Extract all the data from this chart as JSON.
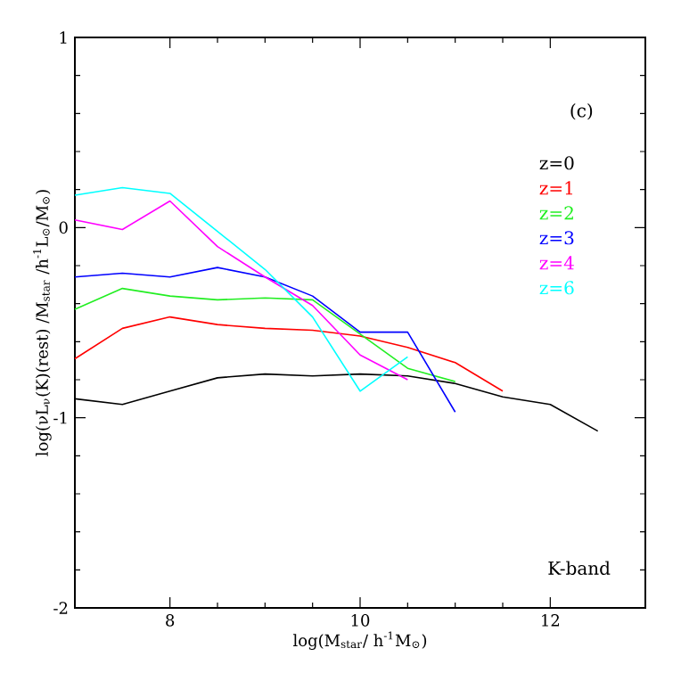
{
  "chart_data": {
    "type": "line",
    "xlabel": "log(M$_{star}$/ h$^{-1}$M$_{⊙}$)",
    "ylabel": "log(νL$_{ν}$(K)(rest) /M$_{star}$ /h$^{-1}$L$_{⊙}$/M$_{⊙}$)",
    "annotations": [
      "(c)",
      "K-band"
    ],
    "xlim": [
      7,
      13
    ],
    "ylim": [
      -2,
      1
    ],
    "xticks": [
      8,
      10,
      12
    ],
    "yticks": [
      -2,
      -1,
      0,
      1
    ],
    "grid": false,
    "legend": "top right",
    "marker": "none",
    "line_style": "solid",
    "x": [
      7,
      7.5,
      8,
      8.5,
      9,
      9.5,
      10,
      10.5,
      11,
      11.5,
      12,
      12.5
    ],
    "series": [
      {
        "name": "z=0",
        "color": "#000000",
        "values": [
          -0.9,
          -0.93,
          -0.86,
          -0.79,
          -0.77,
          -0.78,
          -0.77,
          -0.78,
          -0.82,
          -0.89,
          -0.93,
          -1.07
        ]
      },
      {
        "name": "z=1",
        "color": "#ff0000",
        "values": [
          -0.69,
          -0.53,
          -0.47,
          -0.51,
          -0.53,
          -0.54,
          -0.57,
          -0.63,
          -0.71,
          -0.86,
          null,
          null
        ]
      },
      {
        "name": "z=2",
        "color": "#22ee22",
        "values": [
          -0.43,
          -0.32,
          -0.36,
          -0.38,
          -0.37,
          -0.38,
          -0.56,
          -0.74,
          -0.81,
          null,
          null,
          null
        ]
      },
      {
        "name": "z=3",
        "color": "#0000ff",
        "values": [
          -0.26,
          -0.24,
          -0.26,
          -0.21,
          -0.26,
          -0.36,
          -0.55,
          -0.55,
          -0.97,
          null,
          null,
          null
        ]
      },
      {
        "name": "z=4",
        "color": "#ff00ff",
        "values": [
          0.04,
          -0.01,
          0.14,
          -0.1,
          -0.26,
          -0.41,
          -0.67,
          -0.8,
          null,
          null,
          null,
          null
        ]
      },
      {
        "name": "z=6",
        "color": "#00ffff",
        "values": [
          0.17,
          0.21,
          0.18,
          -0.02,
          -0.22,
          -0.47,
          -0.86,
          -0.68,
          null,
          null,
          null,
          null
        ]
      }
    ]
  }
}
